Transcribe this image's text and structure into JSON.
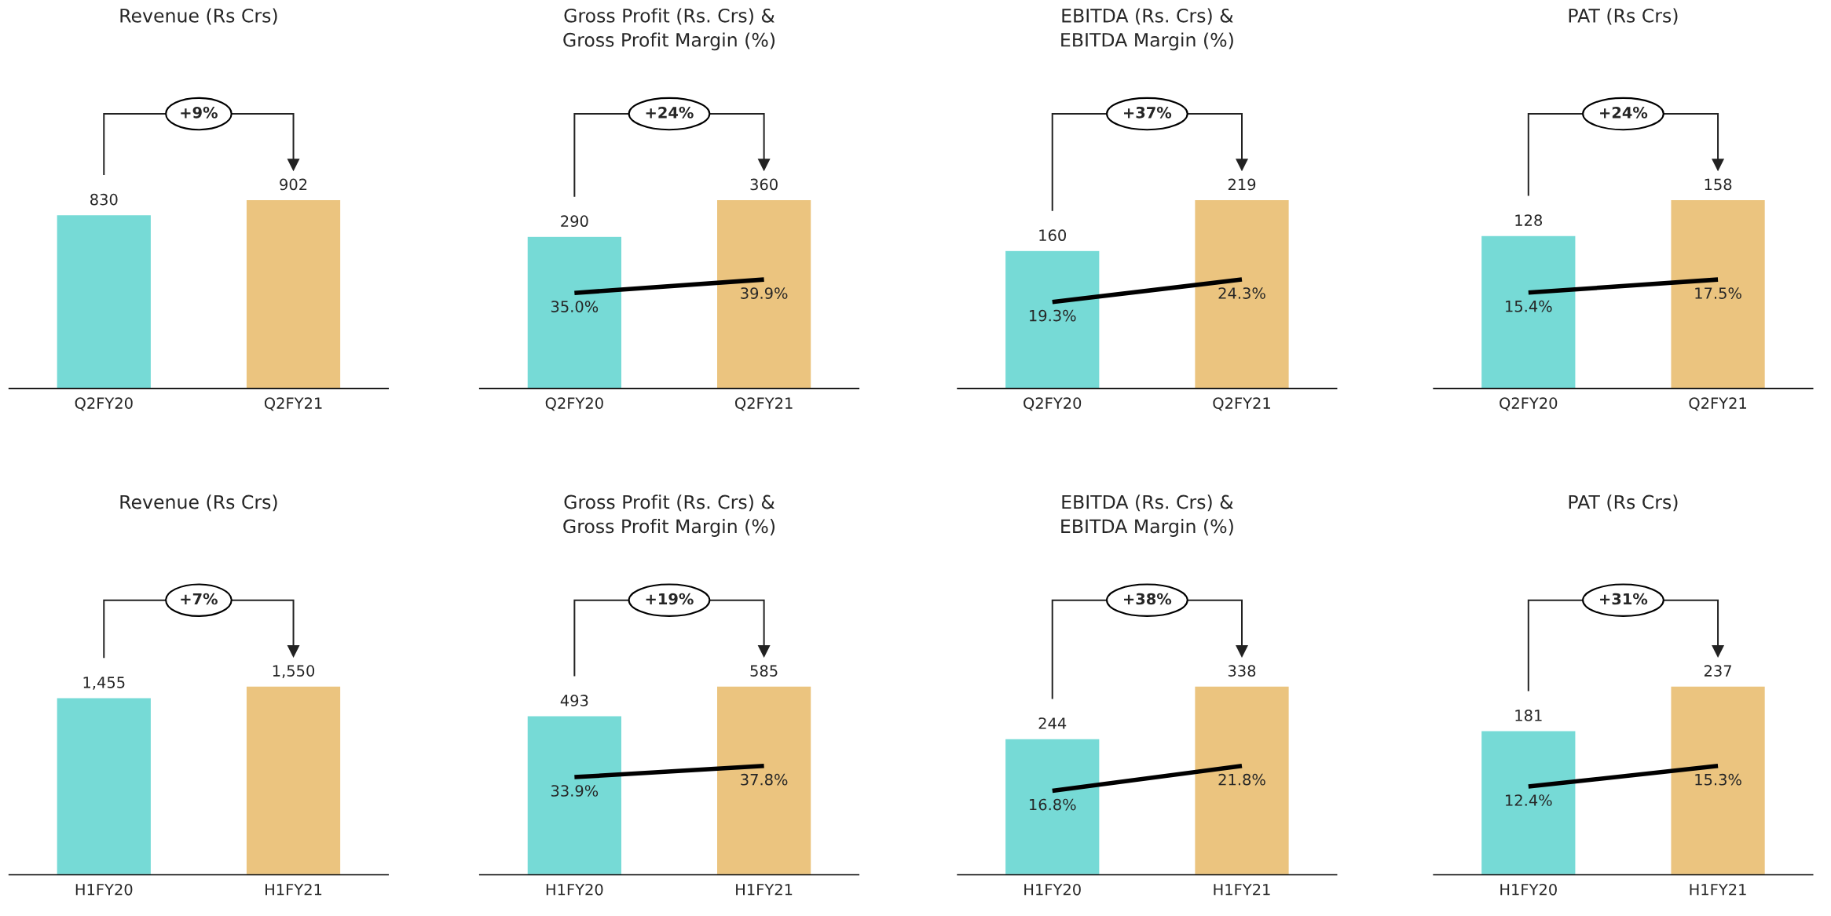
{
  "chart_data": [
    {
      "type": "bar",
      "title": "Revenue (Rs Crs)",
      "categories": [
        "Q2FY20",
        "Q2FY21"
      ],
      "tick_labels": "x",
      "annotations": [
        "+9%"
      ],
      "series": [
        {
          "colors": [
            "#76dad6",
            "#ebc47f"
          ],
          "values": [
            830,
            902
          ],
          "value_labels": [
            "830",
            "902"
          ]
        }
      ]
    },
    {
      "type": "bar",
      "title": "Gross Profit (Rs. Crs) &\nGross Profit Margin (%)",
      "categories": [
        "Q2FY20",
        "Q2FY21"
      ],
      "tick_labels": "x",
      "annotations": [
        "+24%"
      ],
      "series": [
        {
          "colors": [
            "#76dad6",
            "#ebc47f"
          ],
          "values": [
            290,
            360
          ],
          "value_labels": [
            "290",
            "360"
          ]
        },
        {
          "type": "line",
          "axis": "y2",
          "color": "#000000",
          "values": [
            35.0,
            39.9
          ],
          "value_labels": [
            "35.0%",
            "39.9%"
          ]
        }
      ]
    },
    {
      "type": "bar",
      "title": "EBITDA (Rs. Crs) &\nEBITDA Margin (%)",
      "categories": [
        "Q2FY20",
        "Q2FY21"
      ],
      "tick_labels": "x",
      "annotations": [
        "+37%"
      ],
      "series": [
        {
          "colors": [
            "#76dad6",
            "#ebc47f"
          ],
          "values": [
            160,
            219
          ],
          "value_labels": [
            "160",
            "219"
          ]
        },
        {
          "type": "line",
          "axis": "y2",
          "color": "#000000",
          "values": [
            19.3,
            24.3
          ],
          "value_labels": [
            "19.3%",
            "24.3%"
          ]
        }
      ]
    },
    {
      "type": "bar",
      "title": "PAT (Rs Crs)",
      "categories": [
        "Q2FY20",
        "Q2FY21"
      ],
      "tick_labels": "x",
      "annotations": [
        "+24%"
      ],
      "series": [
        {
          "colors": [
            "#76dad6",
            "#ebc47f"
          ],
          "values": [
            128,
            158
          ],
          "value_labels": [
            "128",
            "158"
          ]
        },
        {
          "type": "line",
          "axis": "y2",
          "color": "#000000",
          "values": [
            15.4,
            17.5
          ],
          "value_labels": [
            "15.4%",
            "17.5%"
          ]
        }
      ]
    },
    {
      "type": "bar",
      "title": "Revenue (Rs Crs)",
      "categories": [
        "H1FY20",
        "H1FY21"
      ],
      "tick_labels": "x",
      "annotations": [
        "+7%"
      ],
      "series": [
        {
          "colors": [
            "#76dad6",
            "#ebc47f"
          ],
          "values": [
            1455,
            1550
          ],
          "value_labels": [
            "1,455",
            "1,550"
          ]
        }
      ]
    },
    {
      "type": "bar",
      "title": "Gross Profit (Rs. Crs) &\nGross Profit Margin (%)",
      "categories": [
        "H1FY20",
        "H1FY21"
      ],
      "tick_labels": "x",
      "annotations": [
        "+19%"
      ],
      "series": [
        {
          "colors": [
            "#76dad6",
            "#ebc47f"
          ],
          "values": [
            493,
            585
          ],
          "value_labels": [
            "493",
            "585"
          ]
        },
        {
          "type": "line",
          "axis": "y2",
          "color": "#000000",
          "values": [
            33.9,
            37.8
          ],
          "value_labels": [
            "33.9%",
            "37.8%"
          ]
        }
      ]
    },
    {
      "type": "bar",
      "title": "EBITDA (Rs. Crs) &\nEBITDA Margin (%)",
      "categories": [
        "H1FY20",
        "H1FY21"
      ],
      "tick_labels": "x",
      "annotations": [
        "+38%"
      ],
      "series": [
        {
          "colors": [
            "#76dad6",
            "#ebc47f"
          ],
          "values": [
            244,
            338
          ],
          "value_labels": [
            "244",
            "338"
          ]
        },
        {
          "type": "line",
          "axis": "y2",
          "color": "#000000",
          "values": [
            16.8,
            21.8
          ],
          "value_labels": [
            "16.8%",
            "21.8%"
          ]
        }
      ]
    },
    {
      "type": "bar",
      "title": "PAT (Rs Crs)",
      "categories": [
        "H1FY20",
        "H1FY21"
      ],
      "tick_labels": "x",
      "annotations": [
        "+31%"
      ],
      "series": [
        {
          "colors": [
            "#76dad6",
            "#ebc47f"
          ],
          "values": [
            181,
            237
          ],
          "value_labels": [
            "181",
            "237"
          ]
        },
        {
          "type": "line",
          "axis": "y2",
          "color": "#000000",
          "values": [
            12.4,
            15.3
          ],
          "value_labels": [
            "12.4%",
            "15.3%"
          ]
        }
      ]
    }
  ]
}
